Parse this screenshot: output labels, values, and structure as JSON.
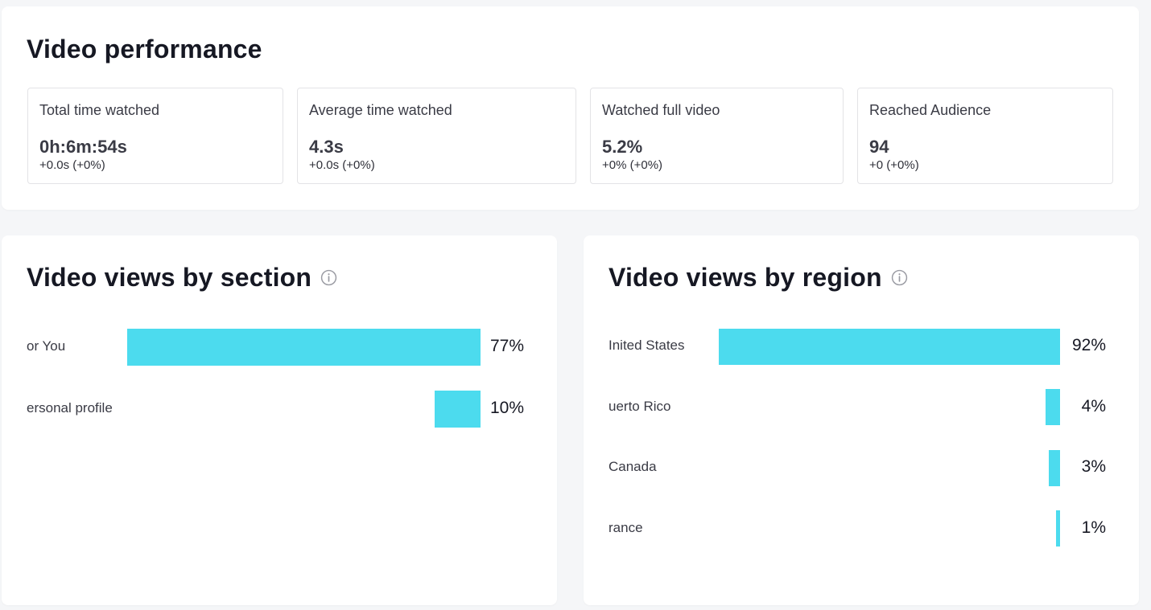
{
  "performance": {
    "title": "Video performance",
    "metrics": [
      {
        "label": "Total time watched",
        "value": "0h:6m:54s",
        "delta": "+0.0s (+0%)"
      },
      {
        "label": "Average time watched",
        "value": "4.3s",
        "delta": "+0.0s (+0%)"
      },
      {
        "label": "Watched full video",
        "value": "5.2%",
        "delta": "+0% (+0%)"
      },
      {
        "label": "Reached Audience",
        "value": "94",
        "delta": "+0 (+0%)"
      }
    ]
  },
  "section": {
    "title": "Video views by section",
    "info_icon": "info-circle-icon"
  },
  "region": {
    "title": "Video views by region",
    "info_icon": "info-circle-icon"
  },
  "colors": {
    "bar": "#4cdbee",
    "background": "#f5f6f8",
    "card": "#ffffff",
    "text": "#161823"
  },
  "chart_data": [
    {
      "type": "bar",
      "orientation": "horizontal",
      "categories": [
        "or You",
        "ersonal profile"
      ],
      "values": [
        77,
        10
      ],
      "labels": [
        "77%",
        "10%"
      ]
    },
    {
      "type": "bar",
      "orientation": "horizontal",
      "categories": [
        "Inited States",
        "uerto Rico",
        "Canada",
        "rance"
      ],
      "values": [
        92,
        4,
        3,
        1
      ],
      "labels": [
        "92%",
        "4%",
        "3%",
        "1%"
      ]
    }
  ]
}
